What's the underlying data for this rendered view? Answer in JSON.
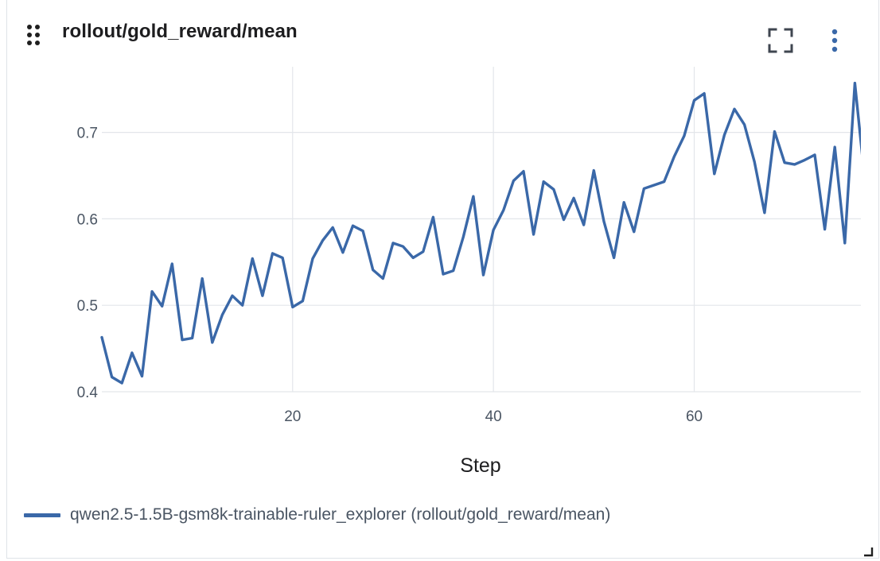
{
  "panel": {
    "title": "rollout/gold_reward/mean",
    "icons": {
      "drag": "drag-handle-icon",
      "fullscreen": "fullscreen-icon",
      "menu": "more-vertical-icon",
      "resize": "resize-corner-icon"
    }
  },
  "colors": {
    "series": "#3a68a8",
    "grid": "#e3e6ea",
    "tick_text": "#4a5563",
    "title_text": "#1d1d1f"
  },
  "chart_data": {
    "type": "line",
    "title": "rollout/gold_reward/mean",
    "xlabel": "Step",
    "ylabel": "",
    "xlim": [
      1,
      76
    ],
    "ylim": [
      0.395,
      0.765
    ],
    "xticks": [
      20,
      40,
      60
    ],
    "yticks": [
      0.4,
      0.5,
      0.6,
      0.7
    ],
    "xtick_labels": [
      "20",
      "40",
      "60"
    ],
    "ytick_labels": [
      "0.4",
      "0.5",
      "0.6",
      "0.7"
    ],
    "grid": true,
    "legend_position": "bottom-left",
    "series": [
      {
        "name": "qwen2.5-1.5B-gsm8k-trainable-ruler_explorer (rollout/gold_reward/mean)",
        "x": [
          1,
          2,
          3,
          4,
          5,
          6,
          7,
          8,
          9,
          10,
          11,
          12,
          13,
          14,
          15,
          16,
          17,
          18,
          19,
          20,
          21,
          22,
          23,
          24,
          25,
          26,
          27,
          28,
          29,
          30,
          31,
          32,
          33,
          34,
          35,
          36,
          37,
          38,
          39,
          40,
          41,
          42,
          43,
          44,
          45,
          46,
          47,
          48,
          49,
          50,
          51,
          52,
          53,
          54,
          55,
          56,
          57,
          58,
          59,
          60,
          61,
          62,
          63,
          64,
          65,
          66,
          67,
          68,
          69,
          70,
          71,
          72,
          73,
          74,
          75,
          76
        ],
        "y": [
          0.463,
          0.417,
          0.41,
          0.445,
          0.418,
          0.516,
          0.499,
          0.548,
          0.46,
          0.462,
          0.531,
          0.457,
          0.489,
          0.511,
          0.5,
          0.554,
          0.511,
          0.56,
          0.555,
          0.498,
          0.505,
          0.554,
          0.575,
          0.59,
          0.561,
          0.592,
          0.586,
          0.541,
          0.531,
          0.572,
          0.568,
          0.555,
          0.562,
          0.602,
          0.536,
          0.54,
          0.579,
          0.626,
          0.535,
          0.587,
          0.61,
          0.644,
          0.655,
          0.582,
          0.643,
          0.634,
          0.599,
          0.624,
          0.593,
          0.656,
          0.597,
          0.555,
          0.619,
          0.585,
          0.635,
          0.639,
          0.643,
          0.672,
          0.696,
          0.737,
          0.745,
          0.652,
          0.697,
          0.727,
          0.709,
          0.666,
          0.607,
          0.701,
          0.665,
          0.663,
          0.668,
          0.674,
          0.588,
          0.683,
          0.572,
          0.757
        ]
      }
    ],
    "last_point": {
      "x": 77,
      "y": 0.644
    }
  }
}
